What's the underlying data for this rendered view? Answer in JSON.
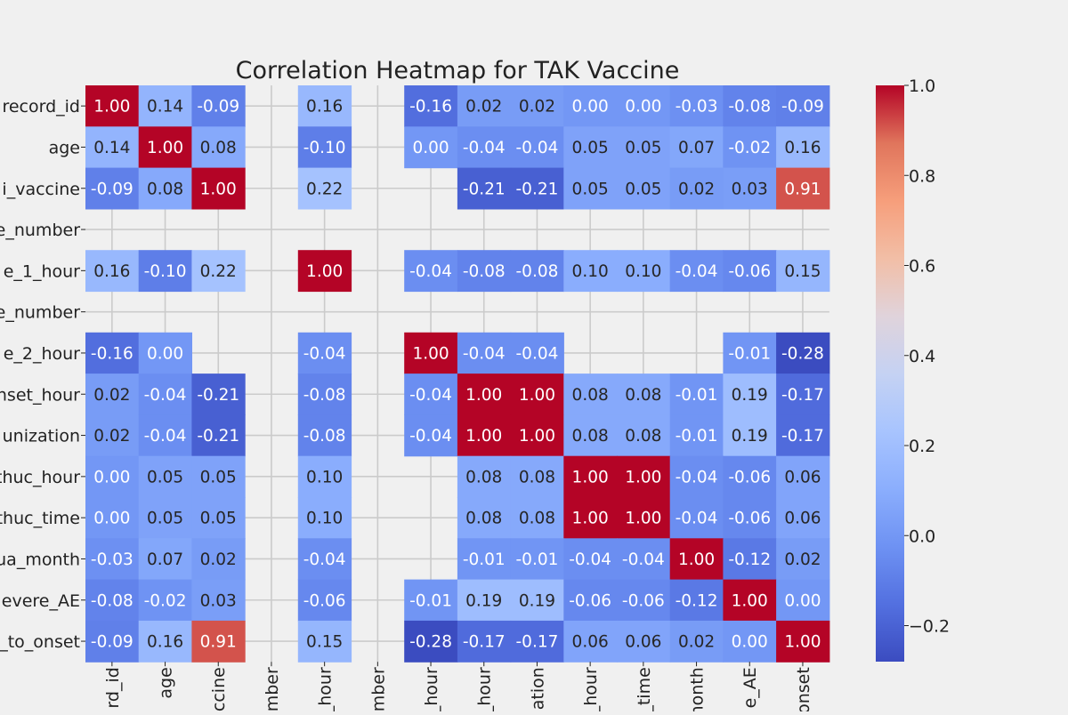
{
  "chart_data": {
    "type": "heatmap",
    "title": "Correlation Heatmap for TAK Vaccine",
    "row_labels": [
      "record_id",
      "age",
      "i_vaccine",
      "e_number",
      "e_1_hour",
      "e_number",
      "e_2_hour",
      "nset_hour",
      "unization",
      "thuc_hour",
      "thuc_time",
      "ua_month",
      "evere_AE",
      "_to_onset"
    ],
    "col_labels": [
      "rd_id",
      "age",
      "ccine",
      "mber",
      "_hour",
      "mber",
      "_hour",
      "_hour",
      "ation",
      "_hour",
      "_time",
      "month",
      "e_AE",
      "onset"
    ],
    "values": [
      [
        1.0,
        0.14,
        -0.09,
        null,
        0.16,
        null,
        -0.16,
        0.02,
        0.02,
        -0.0,
        -0.0,
        -0.03,
        -0.08,
        -0.09
      ],
      [
        0.14,
        1.0,
        0.08,
        null,
        -0.1,
        null,
        0.0,
        -0.04,
        -0.04,
        0.05,
        0.05,
        0.07,
        -0.02,
        0.16
      ],
      [
        -0.09,
        0.08,
        1.0,
        null,
        0.22,
        null,
        null,
        -0.21,
        -0.21,
        0.05,
        0.05,
        0.02,
        0.03,
        0.91
      ],
      [
        null,
        null,
        null,
        null,
        null,
        null,
        null,
        null,
        null,
        null,
        null,
        null,
        null,
        null
      ],
      [
        0.16,
        -0.1,
        0.22,
        null,
        1.0,
        null,
        -0.04,
        -0.08,
        -0.08,
        0.1,
        0.1,
        -0.04,
        -0.06,
        0.15
      ],
      [
        null,
        null,
        null,
        null,
        null,
        null,
        null,
        null,
        null,
        null,
        null,
        null,
        null,
        null
      ],
      [
        -0.16,
        0.0,
        null,
        null,
        -0.04,
        null,
        1.0,
        -0.04,
        -0.04,
        null,
        null,
        null,
        -0.01,
        -0.28
      ],
      [
        0.02,
        -0.04,
        -0.21,
        null,
        -0.08,
        null,
        -0.04,
        1.0,
        1.0,
        0.08,
        0.08,
        -0.01,
        0.19,
        -0.17
      ],
      [
        0.02,
        -0.04,
        -0.21,
        null,
        -0.08,
        null,
        -0.04,
        1.0,
        1.0,
        0.08,
        0.08,
        -0.01,
        0.19,
        -0.17
      ],
      [
        -0.0,
        0.05,
        0.05,
        null,
        0.1,
        null,
        null,
        0.08,
        0.08,
        1.0,
        1.0,
        -0.04,
        -0.06,
        0.06
      ],
      [
        -0.0,
        0.05,
        0.05,
        null,
        0.1,
        null,
        null,
        0.08,
        0.08,
        1.0,
        1.0,
        -0.04,
        -0.06,
        0.06
      ],
      [
        -0.03,
        0.07,
        0.02,
        null,
        -0.04,
        null,
        null,
        -0.01,
        -0.01,
        -0.04,
        -0.04,
        1.0,
        -0.12,
        0.02
      ],
      [
        -0.08,
        -0.02,
        0.03,
        null,
        -0.06,
        null,
        -0.01,
        0.19,
        0.19,
        -0.06,
        -0.06,
        -0.12,
        1.0,
        -0.0
      ],
      [
        -0.09,
        0.16,
        0.91,
        null,
        0.15,
        null,
        -0.28,
        -0.17,
        -0.17,
        0.06,
        0.06,
        0.02,
        -0.0,
        1.0
      ]
    ],
    "colormap": "coolwarm",
    "vmin": -0.28,
    "vmax": 1.0,
    "colorbar": {
      "ticks": [
        1.0,
        0.8,
        0.6,
        0.4,
        0.2,
        0.0,
        -0.2
      ],
      "tick_labels": [
        "1.0",
        "0.8",
        "0.6",
        "0.4",
        "0.2",
        "0.0",
        "−0.2"
      ]
    },
    "grid": true,
    "background_color": "#f0f0f0",
    "grid_color": "#cbcbcb"
  }
}
